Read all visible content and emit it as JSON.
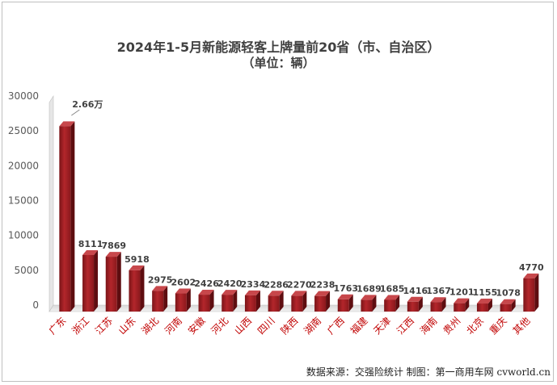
{
  "chart_data": {
    "type": "bar",
    "title": "2024年1-5月新能源轻客上牌量前20省（市、自治区）",
    "subtitle": "（单位：辆）",
    "categories": [
      "广东",
      "浙江",
      "江苏",
      "山东",
      "湖北",
      "河南",
      "安徽",
      "河北",
      "山西",
      "四川",
      "陕西",
      "湖南",
      "广西",
      "福建",
      "天津",
      "江西",
      "海南",
      "贵州",
      "北京",
      "重庆",
      "其他"
    ],
    "values": [
      26600,
      8111,
      7869,
      5918,
      2975,
      2602,
      2426,
      2420,
      2334,
      2286,
      2270,
      2238,
      1763,
      1689,
      1685,
      1416,
      1367,
      1201,
      1155,
      1078,
      4770
    ],
    "data_labels": [
      "2.66万",
      "8111",
      "7869",
      "5918",
      "2975",
      "2602",
      "2426",
      "2420",
      "2334",
      "2286",
      "2270",
      "2238",
      "1763",
      "1689",
      "1685",
      "1416",
      "1367",
      "1201",
      "1155",
      "1078",
      "4770"
    ],
    "ylim": [
      0,
      30000
    ],
    "yticks": [
      0,
      5000,
      10000,
      15000,
      20000,
      25000,
      30000
    ],
    "xlabel": "",
    "ylabel": "",
    "grid": false,
    "bar_color": "#9b2226",
    "source_text": "数据来源：交强险统计 制图：第一商用车网 cvworld.cn"
  }
}
